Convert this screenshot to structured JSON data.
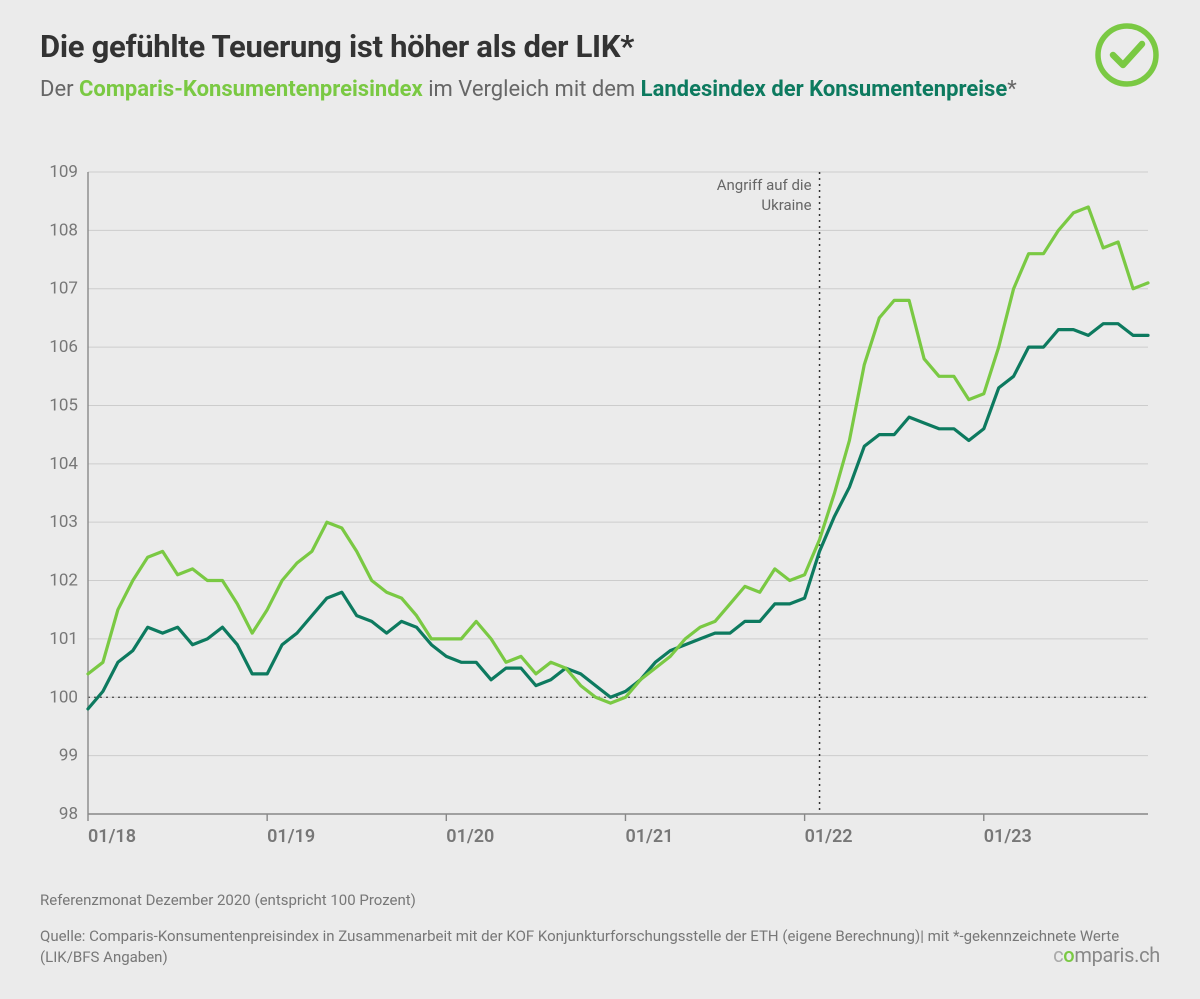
{
  "title": "Die gefühlte Teuerung ist höher als der LIK*",
  "subtitle_prefix": "Der ",
  "subtitle_series1": "Comparis-Konsumentenpreisindex",
  "subtitle_mid": " im Vergleich mit dem ",
  "subtitle_series2": "Landesindex der Konsumentenpreise",
  "subtitle_suffix": "*",
  "footer_ref": "Referenzmonat Dezember 2020 (entspricht 100 Prozent)",
  "footer_source": "Quelle: Comparis-Konsumentenpreisindex in Zusammenarbeit mit der KOF Konjunkturforschungsstelle der ETH (eigene Berechnung)| mit *-gekennzeichnete Werte (LIK/BFS Angaben)",
  "brand_parts": [
    "c",
    "o",
    "mparis.ch"
  ],
  "chart": {
    "type": "line",
    "background_color": "#ebebeb",
    "grid_color": "#cccccc",
    "axis_color": "#888888",
    "axis_label_color": "#777777",
    "axis_label_fontsize": 17,
    "line_width": 3.2,
    "ylim": [
      98,
      109
    ],
    "ytick_step": 1,
    "x_start": 0,
    "x_end": 71,
    "x_ticks": [
      0,
      12,
      24,
      36,
      48,
      60
    ],
    "x_tick_labels": [
      "01/18",
      "01/19",
      "01/20",
      "01/21",
      "01/22",
      "01/23"
    ],
    "baseline": {
      "y": 100,
      "color": "#555555",
      "dash": "2,4"
    },
    "vline": {
      "x": 49,
      "color": "#333333",
      "dash": "2,4",
      "label_l1": "Angriff auf die",
      "label_l2": "Ukraine",
      "label_color": "#666666",
      "label_fontsize": 15
    },
    "series1": {
      "name": "Comparis-Konsumentenpreisindex",
      "color": "#7ac943",
      "values": [
        100.4,
        100.6,
        101.5,
        102.0,
        102.4,
        102.5,
        102.1,
        102.2,
        102.0,
        102.0,
        101.6,
        101.1,
        101.5,
        102.0,
        102.3,
        102.5,
        103.0,
        102.9,
        102.5,
        102.0,
        101.8,
        101.7,
        101.4,
        101.0,
        101.0,
        101.0,
        101.3,
        101.0,
        100.6,
        100.7,
        100.4,
        100.6,
        100.5,
        100.2,
        100.0,
        99.9,
        100.0,
        100.3,
        100.5,
        100.7,
        101.0,
        101.2,
        101.3,
        101.6,
        101.9,
        101.8,
        102.2,
        102.0,
        102.1,
        102.7,
        103.5,
        104.4,
        105.7,
        106.5,
        106.8,
        106.8,
        105.8,
        105.5,
        105.5,
        105.1,
        105.2,
        106.0,
        107.0,
        107.6,
        107.6,
        108.0,
        108.3,
        108.4,
        107.7,
        107.8,
        107.0,
        107.1
      ]
    },
    "series2": {
      "name": "Landesindex der Konsumentenpreise",
      "color": "#0d7a5f",
      "values": [
        99.8,
        100.1,
        100.6,
        100.8,
        101.2,
        101.1,
        101.2,
        100.9,
        101.0,
        101.2,
        100.9,
        100.4,
        100.4,
        100.9,
        101.1,
        101.4,
        101.7,
        101.8,
        101.4,
        101.3,
        101.1,
        101.3,
        101.2,
        100.9,
        100.7,
        100.6,
        100.6,
        100.3,
        100.5,
        100.5,
        100.2,
        100.3,
        100.5,
        100.4,
        100.2,
        100.0,
        100.1,
        100.3,
        100.6,
        100.8,
        100.9,
        101.0,
        101.1,
        101.1,
        101.3,
        101.3,
        101.6,
        101.6,
        101.7,
        102.5,
        103.1,
        103.6,
        104.3,
        104.5,
        104.5,
        104.8,
        104.7,
        104.6,
        104.6,
        104.4,
        104.6,
        105.3,
        105.5,
        106.0,
        106.0,
        106.3,
        106.3,
        106.2,
        106.4,
        106.4,
        106.2,
        106.2
      ]
    }
  }
}
